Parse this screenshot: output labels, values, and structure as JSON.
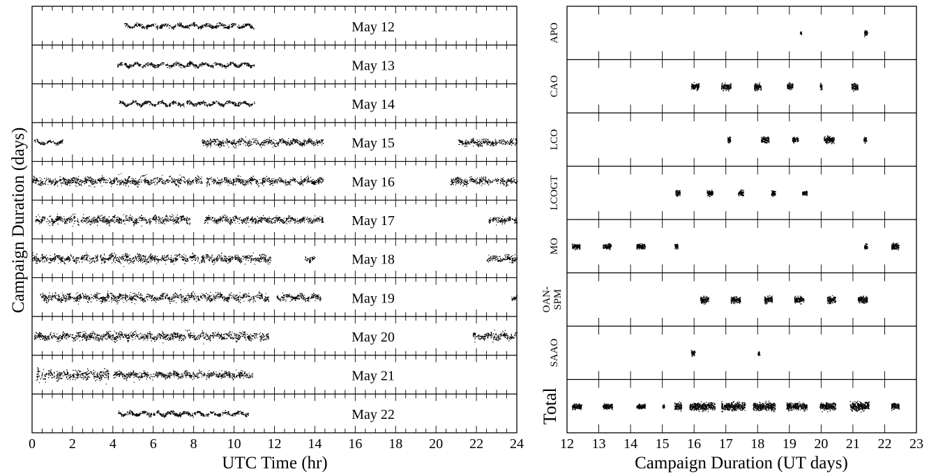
{
  "chart_data": [
    {
      "type": "scatter",
      "panel": "left",
      "xlabel": "UTC Time (hr)",
      "ylabel": "Campaign Duration  (days)",
      "xlim": [
        0,
        24
      ],
      "xticks": [
        0,
        2,
        4,
        6,
        8,
        10,
        12,
        14,
        16,
        18,
        20,
        22,
        24
      ],
      "minor_tick_step": 0.5,
      "grid": false,
      "rows": [
        {
          "label": "May 12",
          "segments": [
            [
              4.55,
              11.0,
              0.35
            ]
          ]
        },
        {
          "label": "May 13",
          "segments": [
            [
              4.2,
              11.0,
              0.35
            ]
          ]
        },
        {
          "label": "May 14",
          "segments": [
            [
              4.3,
              11.0,
              0.35
            ]
          ]
        },
        {
          "label": "May 15",
          "segments": [
            [
              0.1,
              1.5,
              0.3
            ],
            [
              8.4,
              11.0,
              0.6
            ],
            [
              11.0,
              14.4,
              0.5
            ],
            [
              21.1,
              24.0,
              0.55
            ]
          ]
        },
        {
          "label": "May 16",
          "segments": [
            [
              0.0,
              8.4,
              0.7
            ],
            [
              8.6,
              11.8,
              0.6
            ],
            [
              11.8,
              14.4,
              0.5
            ],
            [
              20.7,
              24.0,
              0.6
            ]
          ]
        },
        {
          "label": "May 17",
          "segments": [
            [
              0.1,
              7.8,
              0.7
            ],
            [
              8.5,
              11.5,
              0.6
            ],
            [
              11.5,
              14.4,
              0.5
            ],
            [
              22.6,
              24.0,
              0.5
            ]
          ]
        },
        {
          "label": "May 18",
          "segments": [
            [
              0.0,
              11.8,
              0.7
            ],
            [
              13.5,
              14.0,
              0.5
            ],
            [
              22.5,
              24.0,
              0.5
            ]
          ]
        },
        {
          "label": "May 19",
          "segments": [
            [
              0.4,
              11.7,
              0.7
            ],
            [
              12.1,
              14.3,
              0.5
            ],
            [
              23.7,
              24.0,
              0.5
            ]
          ]
        },
        {
          "label": "May 20",
          "segments": [
            [
              0.1,
              11.7,
              0.7
            ],
            [
              21.8,
              24.0,
              0.6
            ]
          ]
        },
        {
          "label": "May 21",
          "segments": [
            [
              0.2,
              3.8,
              0.9
            ],
            [
              4.0,
              10.9,
              0.6
            ]
          ]
        },
        {
          "label": "May 22",
          "segments": [
            [
              4.2,
              10.7,
              0.35
            ]
          ]
        }
      ]
    },
    {
      "type": "scatter",
      "panel": "right",
      "xlabel": "Campaign Duration (UT days)",
      "ylabel": "",
      "xlim": [
        12,
        23
      ],
      "xticks": [
        12,
        13,
        14,
        15,
        16,
        17,
        18,
        19,
        20,
        21,
        22,
        23
      ],
      "grid": false,
      "rows": [
        {
          "label": "APO",
          "segments": [
            [
              19.33,
              19.36,
              0.25
            ],
            [
              21.35,
              21.45,
              0.45
            ]
          ]
        },
        {
          "label": "CAO",
          "segments": [
            [
              15.9,
              16.15,
              0.6
            ],
            [
              16.85,
              17.15,
              0.6
            ],
            [
              17.88,
              18.1,
              0.6
            ],
            [
              18.92,
              19.1,
              0.55
            ],
            [
              19.95,
              20.02,
              0.6
            ],
            [
              20.95,
              21.15,
              0.7
            ]
          ]
        },
        {
          "label": "LCO",
          "segments": [
            [
              17.05,
              17.15,
              0.45
            ],
            [
              18.1,
              18.35,
              0.55
            ],
            [
              19.08,
              19.27,
              0.55
            ],
            [
              20.08,
              20.4,
              0.55
            ],
            [
              21.33,
              21.42,
              0.45
            ]
          ]
        },
        {
          "label": "LCOGT",
          "segments": [
            [
              15.4,
              15.55,
              0.55
            ],
            [
              16.4,
              16.6,
              0.55
            ],
            [
              17.38,
              17.55,
              0.5
            ],
            [
              18.42,
              18.55,
              0.5
            ],
            [
              19.4,
              19.55,
              0.4
            ]
          ]
        },
        {
          "label": "MO",
          "segments": [
            [
              12.15,
              12.4,
              0.45
            ],
            [
              13.12,
              13.38,
              0.45
            ],
            [
              14.18,
              14.45,
              0.45
            ],
            [
              15.38,
              15.48,
              0.45
            ],
            [
              21.35,
              21.45,
              0.45
            ],
            [
              22.2,
              22.45,
              0.55
            ]
          ]
        },
        {
          "label": "OAN-\nSPM",
          "segments": [
            [
              16.18,
              16.45,
              0.6
            ],
            [
              17.15,
              17.45,
              0.6
            ],
            [
              18.2,
              18.45,
              0.6
            ],
            [
              19.15,
              19.45,
              0.6
            ],
            [
              20.18,
              20.45,
              0.6
            ],
            [
              21.15,
              21.45,
              0.6
            ]
          ]
        },
        {
          "label": "SAAO",
          "segments": [
            [
              15.9,
              16.02,
              0.5
            ],
            [
              18.0,
              18.06,
              0.4
            ]
          ]
        },
        {
          "label": "Total",
          "segments": [
            [
              12.15,
              12.45,
              0.45
            ],
            [
              13.12,
              13.42,
              0.45
            ],
            [
              14.18,
              14.45,
              0.45
            ],
            [
              15.0,
              15.06,
              0.3
            ],
            [
              15.38,
              15.6,
              0.7
            ],
            [
              15.85,
              16.65,
              0.7
            ],
            [
              16.85,
              17.6,
              0.7
            ],
            [
              17.85,
              18.55,
              0.7
            ],
            [
              18.9,
              19.55,
              0.65
            ],
            [
              19.95,
              20.45,
              0.65
            ],
            [
              20.9,
              21.5,
              0.8
            ],
            [
              22.2,
              22.45,
              0.5
            ]
          ]
        }
      ]
    }
  ]
}
